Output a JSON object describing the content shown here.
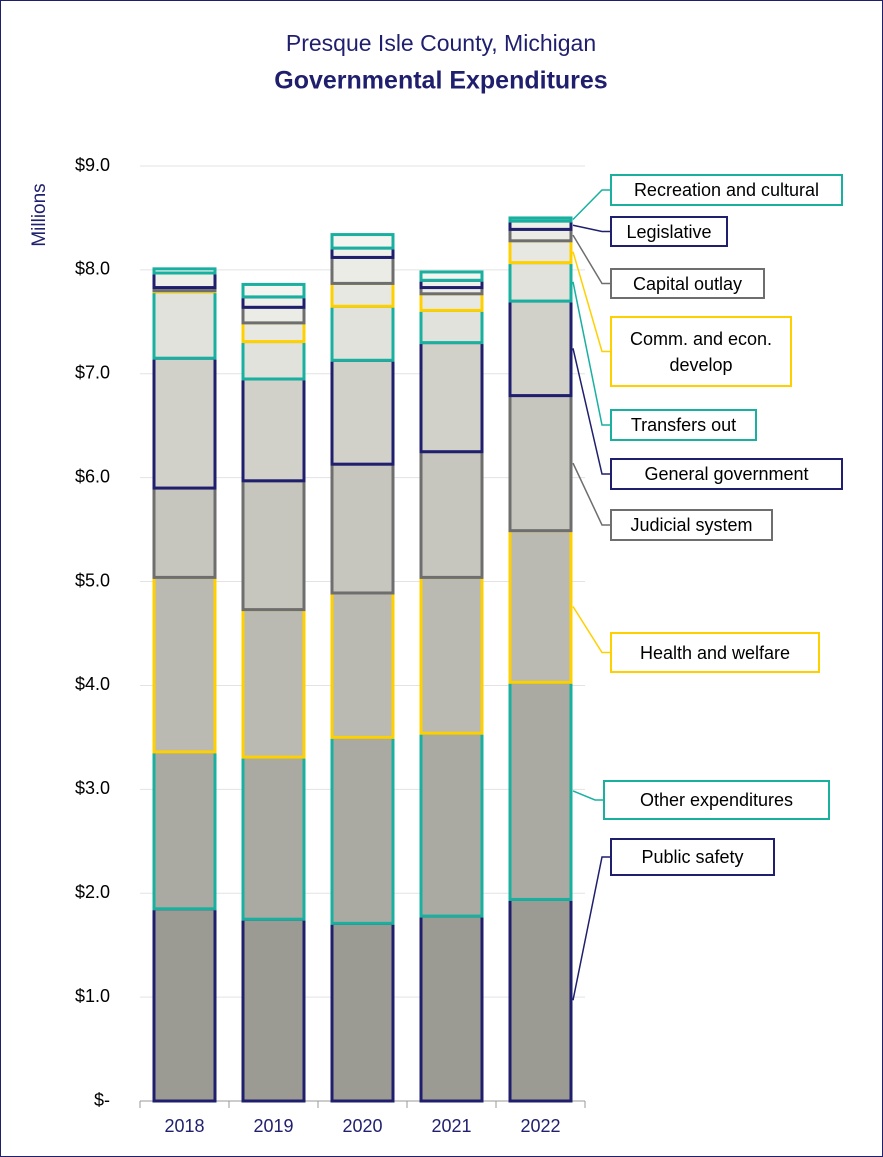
{
  "chart_data": {
    "type": "stacked_bar",
    "title": "Presque Isle County, Michigan",
    "subtitle": "Governmental Expenditures",
    "y_label": "Millions",
    "categories": [
      "2018",
      "2019",
      "2020",
      "2021",
      "2022"
    ],
    "series": [
      {
        "name": "Public safety",
        "color": "#1f1f6e",
        "fill": "#9c9b93",
        "values": [
          1.85,
          1.75,
          1.71,
          1.78,
          1.94
        ]
      },
      {
        "name": "Other expenditures",
        "color": "#19b0a0",
        "fill": "#abaaa2",
        "values": [
          1.51,
          1.56,
          1.79,
          1.76,
          2.09
        ]
      },
      {
        "name": "Health and welfare",
        "color": "#ffd000",
        "fill": "#bbbab2",
        "values": [
          1.68,
          1.42,
          1.39,
          1.5,
          1.46
        ]
      },
      {
        "name": "Judicial system",
        "color": "#6e6e6e",
        "fill": "#c6c5be",
        "values": [
          0.86,
          1.24,
          1.24,
          1.21,
          1.3
        ]
      },
      {
        "name": "General government",
        "color": "#1f1f6e",
        "fill": "#d1d0c9",
        "values": [
          1.25,
          0.98,
          1.0,
          1.05,
          0.91
        ]
      },
      {
        "name": "Transfers out",
        "color": "#19b0a0",
        "fill": "#e2e2dc",
        "values": [
          0.64,
          0.36,
          0.52,
          0.31,
          0.37
        ]
      },
      {
        "name": "Comm. and econ. develop",
        "color": "#ffd000",
        "fill": "#e8e8e2",
        "values": [
          0.01,
          0.18,
          0.22,
          0.16,
          0.21
        ]
      },
      {
        "name": "Capital outlay",
        "color": "#6e6e6e",
        "fill": "#ececE6",
        "values": [
          0.03,
          0.15,
          0.25,
          0.06,
          0.11
        ]
      },
      {
        "name": "Legislative",
        "color": "#1f1f6e",
        "fill": "#f0f0eb",
        "values": [
          0.14,
          0.1,
          0.09,
          0.07,
          0.08
        ]
      },
      {
        "name": "Recreation and cultural",
        "color": "#19b0a0",
        "fill": "#f4f4f0",
        "values": [
          0.04,
          0.12,
          0.13,
          0.08,
          0.03
        ]
      }
    ],
    "ylim": [
      0,
      9
    ],
    "yticks": [
      {
        "value": 0,
        "label": "$-"
      },
      {
        "value": 1,
        "label": "$1.0"
      },
      {
        "value": 2,
        "label": "$2.0"
      },
      {
        "value": 3,
        "label": "$3.0"
      },
      {
        "value": 4,
        "label": "$4.0"
      },
      {
        "value": 5,
        "label": "$5.0"
      },
      {
        "value": 6,
        "label": "$6.0"
      },
      {
        "value": 7,
        "label": "$7.0"
      },
      {
        "value": 8,
        "label": "$8.0"
      },
      {
        "value": 9,
        "label": "$9.0"
      }
    ],
    "grid": true
  }
}
